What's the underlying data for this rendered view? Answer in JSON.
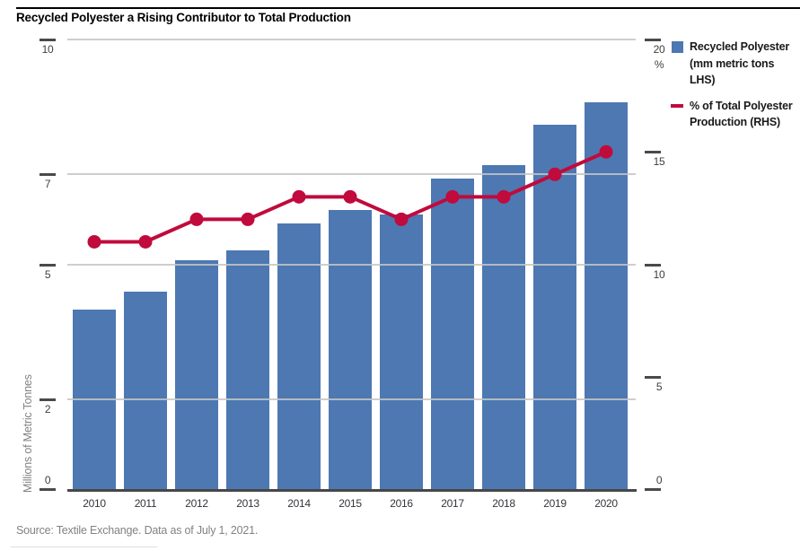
{
  "title": "Recycled Polyester a Rising Contributor to Total Production",
  "source_note": "Source: Textile Exchange. Data as of July 1, 2021.",
  "colors": {
    "bar": "#4d78b2",
    "line": "#c00b3c",
    "gridline": "#c9c9c9",
    "axis": "#474747",
    "muted_text": "#828282"
  },
  "legend": {
    "items": [
      {
        "name": "recycled-polyester",
        "swatch": "square",
        "color": "#4d78b2",
        "label": "Recycled Polyester (mm metric tons LHS)",
        "lines": [
          "Recycled Polyester",
          "(mm metric tons",
          "LHS)"
        ]
      },
      {
        "name": "pct-total-production",
        "swatch": "dash",
        "color": "#c00b3c",
        "label": "% of Total Polyester Production (RHS)",
        "lines": [
          "% of Total Polyester",
          "Production (RHS)"
        ]
      }
    ]
  },
  "chart_data": {
    "type": "bar+line",
    "title": "Recycled Polyester a Rising Contributor to Total Production",
    "categories": [
      "2010",
      "2011",
      "2012",
      "2013",
      "2014",
      "2015",
      "2016",
      "2017",
      "2018",
      "2019",
      "2020"
    ],
    "series": [
      {
        "name": "Recycled Polyester (mm metric tons LHS)",
        "type": "bar",
        "axis": "left",
        "color": "#4d78b2",
        "values": [
          4.0,
          4.4,
          5.1,
          5.3,
          5.9,
          6.2,
          6.1,
          6.9,
          7.2,
          8.1,
          8.6
        ]
      },
      {
        "name": "% of Total Polyester Production (RHS)",
        "type": "line",
        "axis": "right",
        "color": "#c00b3c",
        "values": [
          11,
          11,
          12,
          12,
          13,
          13,
          12,
          13,
          13,
          14,
          15
        ]
      }
    ],
    "axes": {
      "left": {
        "title": "Millions of Metric Tonnes",
        "min": 0,
        "max": 10,
        "ticks": [
          0,
          2,
          5,
          7,
          10
        ]
      },
      "right": {
        "unit": "%",
        "min": 0,
        "max": 20,
        "ticks": [
          0,
          5,
          10,
          15,
          20
        ]
      }
    },
    "gridline_values_left": [
      2,
      5,
      7,
      10
    ],
    "legend_position": "top-right",
    "grid": true
  }
}
